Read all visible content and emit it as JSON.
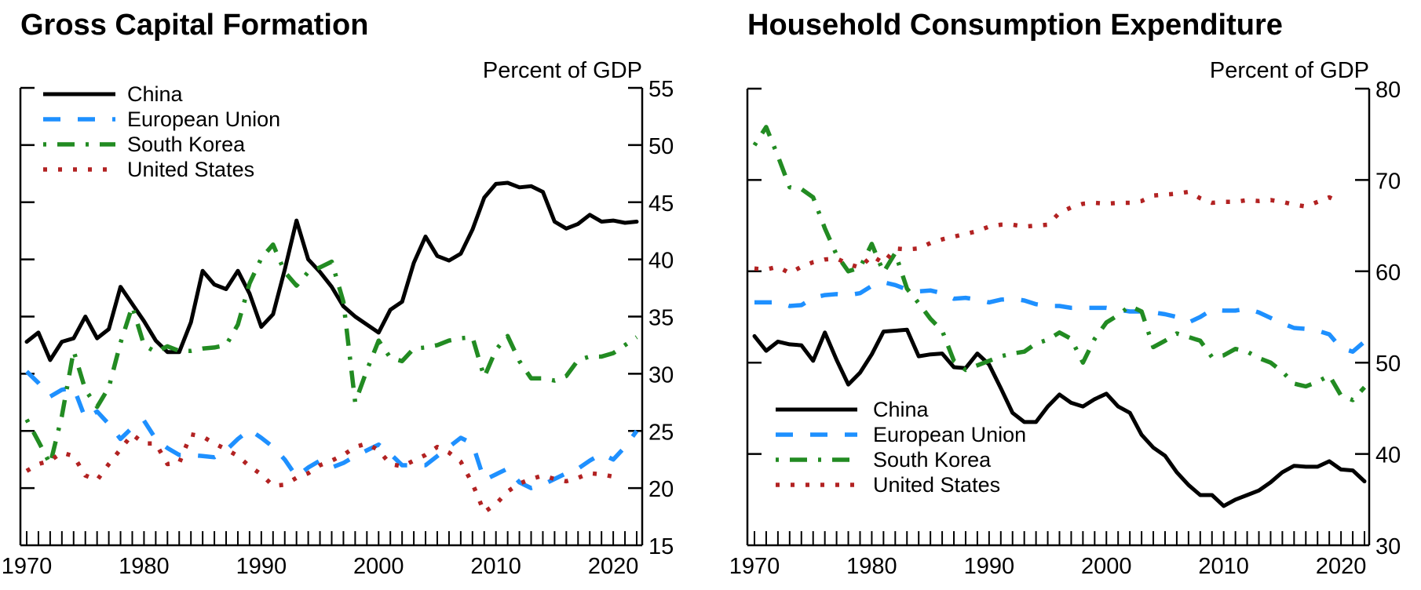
{
  "chart_data": [
    {
      "type": "line",
      "title": "Gross Capital Formation",
      "ylabel": "Percent of GDP",
      "xlabel": "",
      "xlim": [
        1970,
        2022
      ],
      "ylim": [
        15,
        55
      ],
      "yticks": [
        15,
        20,
        25,
        30,
        35,
        40,
        45,
        50,
        55
      ],
      "xticks": [
        1970,
        1980,
        1990,
        2000,
        2010,
        2020
      ],
      "legend": "top-left",
      "grid": false,
      "x": [
        1970,
        1971,
        1972,
        1973,
        1974,
        1975,
        1976,
        1977,
        1978,
        1979,
        1980,
        1981,
        1982,
        1983,
        1984,
        1985,
        1986,
        1987,
        1988,
        1989,
        1990,
        1991,
        1992,
        1993,
        1994,
        1995,
        1996,
        1997,
        1998,
        1999,
        2000,
        2001,
        2002,
        2003,
        2004,
        2005,
        2006,
        2007,
        2008,
        2009,
        2010,
        2011,
        2012,
        2013,
        2014,
        2015,
        2016,
        2017,
        2018,
        2019,
        2020,
        2021,
        2022
      ],
      "series": [
        {
          "name": "China",
          "color": "#000000",
          "style": "solid",
          "values": [
            32.8,
            33.6,
            31.2,
            32.8,
            33.1,
            35.0,
            33.1,
            33.9,
            37.6,
            36.1,
            34.6,
            32.9,
            31.9,
            31.9,
            34.5,
            39.0,
            37.8,
            37.4,
            39.0,
            37.0,
            34.1,
            35.2,
            39.1,
            43.4,
            40.0,
            38.9,
            37.6,
            35.9,
            35.0,
            34.3,
            33.6,
            35.6,
            36.3,
            39.7,
            42.0,
            40.3,
            39.9,
            40.5,
            42.6,
            45.4,
            46.6,
            46.7,
            46.3,
            46.4,
            45.9,
            43.3,
            42.7,
            43.1,
            43.9,
            43.3,
            43.4,
            43.2,
            43.3
          ]
        },
        {
          "name": "European Union",
          "color": "#1e90ff",
          "style": "dashed",
          "values": [
            30.2,
            29.2,
            28.0,
            28.6,
            28.8,
            26.1,
            26.7,
            25.6,
            24.3,
            25.3,
            25.9,
            24.3,
            23.5,
            22.9,
            22.9,
            22.8,
            22.7,
            23.3,
            24.3,
            25.1,
            24.4,
            23.6,
            22.5,
            21.0,
            21.8,
            22.4,
            21.8,
            22.2,
            22.8,
            23.3,
            23.8,
            23.0,
            22.0,
            22.0,
            22.0,
            22.8,
            23.6,
            24.4,
            23.9,
            20.7,
            21.2,
            21.7,
            20.5,
            20.0,
            20.3,
            20.8,
            21.3,
            21.7,
            22.4,
            23.0,
            22.5,
            23.6,
            25.0
          ]
        },
        {
          "name": "South Korea",
          "color": "#228b22",
          "style": "dashdot",
          "values": [
            26.0,
            24.1,
            22.1,
            26.3,
            32.0,
            28.6,
            27.1,
            28.8,
            32.7,
            35.9,
            32.5,
            31.9,
            32.4,
            32.0,
            32.0,
            32.2,
            32.3,
            32.5,
            34.3,
            37.9,
            40.1,
            41.3,
            38.9,
            37.7,
            38.9,
            39.3,
            39.8,
            36.3,
            27.5,
            30.3,
            32.9,
            31.4,
            31.1,
            32.2,
            32.3,
            32.5,
            32.9,
            33.1,
            33.2,
            29.7,
            32.1,
            33.3,
            31.1,
            29.6,
            29.6,
            29.4,
            29.8,
            31.2,
            31.5,
            31.5,
            31.8,
            32.5,
            33.2
          ]
        },
        {
          "name": "United States",
          "color": "#b22222",
          "style": "dotted",
          "values": [
            21.5,
            22.1,
            22.4,
            23.1,
            22.8,
            21.1,
            20.7,
            22.1,
            23.4,
            24.7,
            23.9,
            23.9,
            22.1,
            22.2,
            24.7,
            24.5,
            23.9,
            23.4,
            22.8,
            21.9,
            21.2,
            20.2,
            20.3,
            20.9,
            21.3,
            22.0,
            22.4,
            22.9,
            23.6,
            23.9,
            23.3,
            22.1,
            21.9,
            22.4,
            22.9,
            23.6,
            23.1,
            22.3,
            20.4,
            17.9,
            18.6,
            19.7,
            20.4,
            20.8,
            21.1,
            20.8,
            20.6,
            20.9,
            21.3,
            21.2,
            21.0,
            null,
            null
          ]
        }
      ]
    },
    {
      "type": "line",
      "title": "Household Consumption Expenditure",
      "ylabel": "Percent of GDP",
      "xlabel": "",
      "xlim": [
        1970,
        2022
      ],
      "ylim": [
        30,
        80
      ],
      "yticks": [
        30,
        40,
        50,
        60,
        70,
        80
      ],
      "xticks": [
        1970,
        1980,
        1990,
        2000,
        2010,
        2020
      ],
      "legend": "bottom-left",
      "grid": false,
      "x": [
        1970,
        1971,
        1972,
        1973,
        1974,
        1975,
        1976,
        1977,
        1978,
        1979,
        1980,
        1981,
        1982,
        1983,
        1984,
        1985,
        1986,
        1987,
        1988,
        1989,
        1990,
        1991,
        1992,
        1993,
        1994,
        1995,
        1996,
        1997,
        1998,
        1999,
        2000,
        2001,
        2002,
        2003,
        2004,
        2005,
        2006,
        2007,
        2008,
        2009,
        2010,
        2011,
        2012,
        2013,
        2014,
        2015,
        2016,
        2017,
        2018,
        2019,
        2020,
        2021,
        2022
      ],
      "series": [
        {
          "name": "China",
          "color": "#000000",
          "style": "solid",
          "values": [
            52.9,
            51.3,
            52.3,
            52.0,
            51.9,
            50.2,
            53.3,
            50.3,
            47.6,
            48.9,
            50.9,
            53.4,
            53.5,
            53.6,
            50.7,
            50.9,
            51.0,
            49.5,
            49.4,
            51.0,
            49.8,
            47.2,
            44.5,
            43.5,
            43.5,
            45.2,
            46.5,
            45.6,
            45.2,
            46.0,
            46.6,
            45.2,
            44.5,
            42.1,
            40.7,
            39.8,
            38.0,
            36.6,
            35.5,
            35.5,
            34.3,
            35.0,
            35.5,
            36.0,
            36.9,
            38.0,
            38.7,
            38.6,
            38.6,
            39.2,
            38.3,
            38.2,
            37.0
          ]
        },
        {
          "name": "European Union",
          "color": "#1e90ff",
          "style": "dashed",
          "values": [
            56.6,
            56.6,
            56.6,
            56.2,
            56.3,
            57.1,
            57.4,
            57.5,
            57.4,
            57.6,
            58.4,
            58.8,
            58.5,
            58.0,
            57.8,
            57.9,
            57.6,
            57.0,
            57.1,
            56.9,
            56.6,
            56.9,
            57.0,
            56.8,
            56.4,
            56.2,
            56.2,
            56.0,
            56.0,
            56.0,
            56.0,
            55.8,
            55.6,
            55.6,
            55.5,
            55.3,
            55.0,
            54.4,
            55.0,
            55.8,
            55.7,
            55.7,
            55.9,
            55.5,
            54.9,
            54.3,
            53.8,
            53.7,
            53.5,
            53.1,
            51.6,
            51.2,
            52.3
          ]
        },
        {
          "name": "South Korea",
          "color": "#228b22",
          "style": "dashdot",
          "values": [
            73.8,
            75.8,
            72.6,
            69.2,
            69.0,
            68.1,
            64.7,
            61.8,
            60.0,
            60.4,
            63.0,
            59.9,
            62.0,
            58.1,
            56.5,
            54.8,
            53.5,
            50.2,
            49.2,
            49.7,
            50.2,
            50.7,
            51.0,
            51.2,
            52.1,
            52.5,
            53.3,
            52.6,
            50.0,
            52.6,
            54.4,
            55.2,
            56.2,
            55.6,
            51.7,
            52.4,
            53.2,
            52.8,
            52.4,
            50.6,
            50.8,
            51.5,
            51.2,
            50.5,
            50.0,
            49.0,
            47.7,
            47.4,
            47.9,
            48.6,
            46.4,
            45.9,
            47.3
          ]
        },
        {
          "name": "United States",
          "color": "#b22222",
          "style": "dotted",
          "values": [
            60.3,
            60.2,
            60.5,
            59.8,
            60.5,
            61.0,
            61.3,
            61.4,
            60.8,
            60.4,
            61.7,
            60.9,
            62.5,
            62.4,
            62.5,
            63.1,
            63.5,
            63.8,
            64.1,
            64.4,
            64.9,
            65.1,
            65.1,
            64.9,
            65.0,
            65.1,
            66.4,
            67.0,
            67.4,
            67.5,
            67.4,
            67.5,
            67.5,
            67.7,
            68.3,
            68.4,
            68.5,
            68.7,
            68.0,
            67.5,
            67.6,
            67.6,
            67.8,
            67.7,
            67.8,
            67.6,
            67.3,
            67.1,
            67.6,
            68.1,
            67.5,
            null,
            null
          ]
        }
      ]
    }
  ]
}
